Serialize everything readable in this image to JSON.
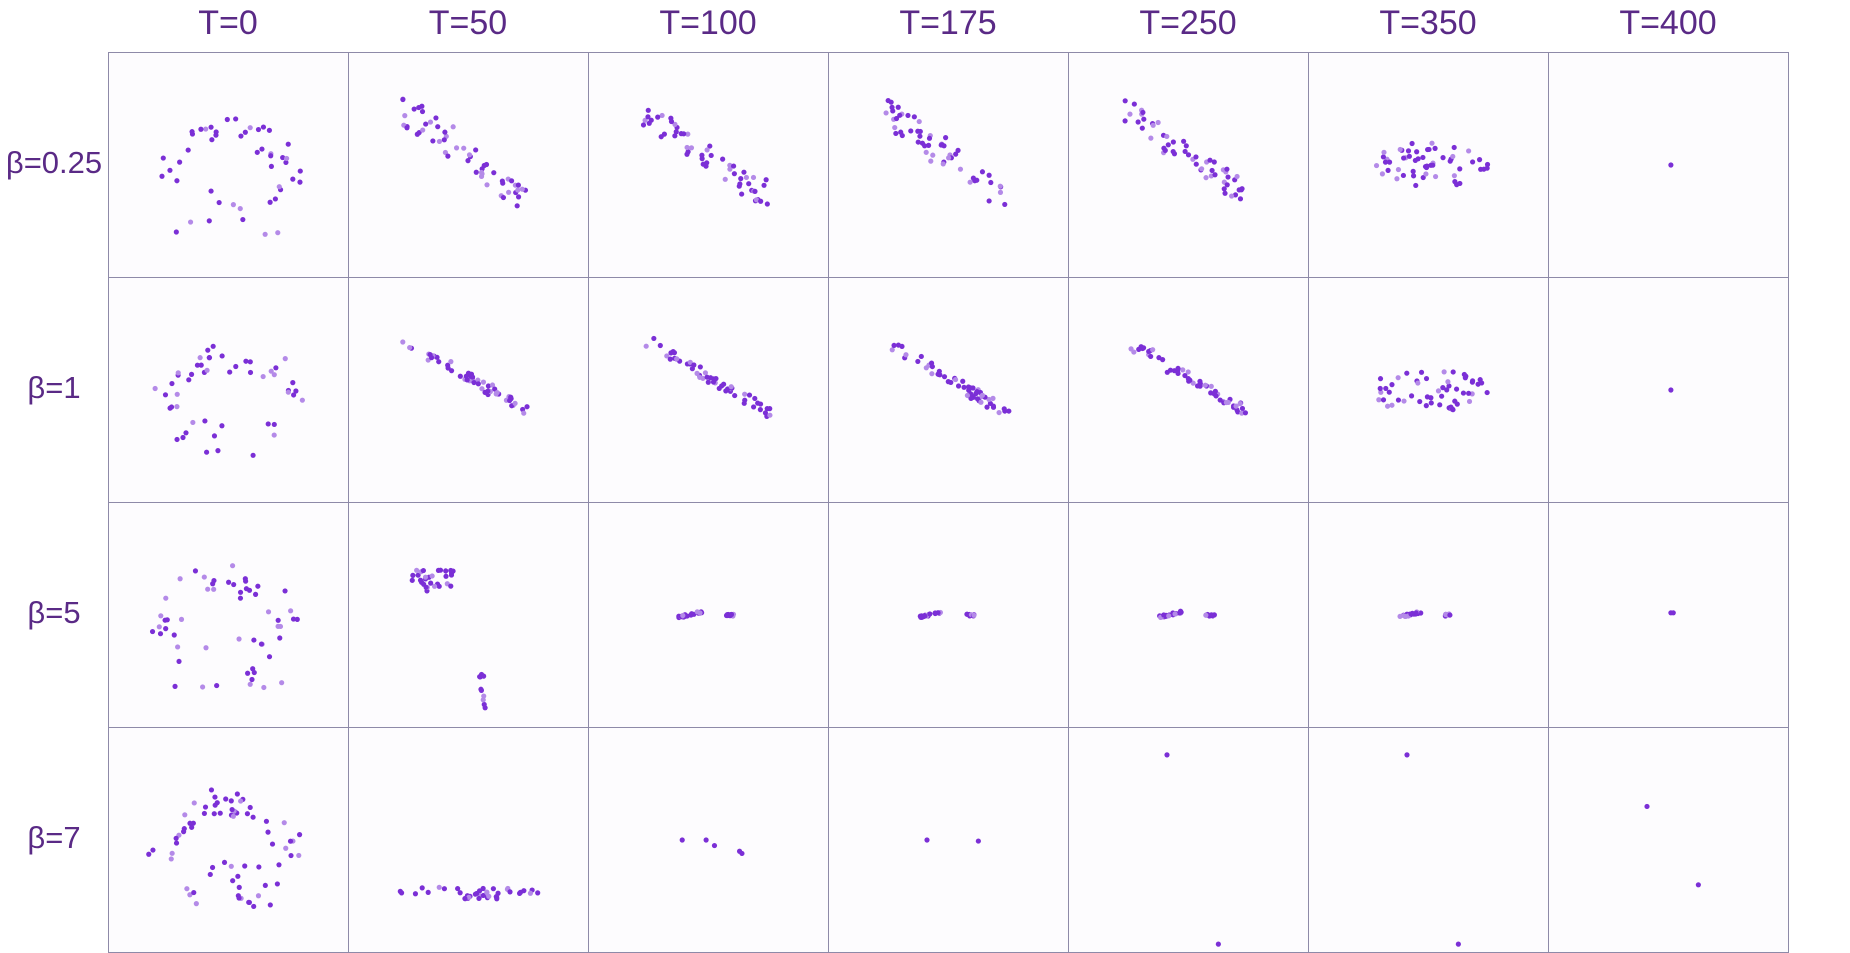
{
  "colors": {
    "label": "#5a2a86",
    "border": "#8e8aa8",
    "point_dark": "#7b2fd6",
    "point_light": "#b48ae8"
  },
  "columns": [
    "T=0",
    "T=50",
    "T=100",
    "T=175",
    "T=250",
    "T=350",
    "T=400"
  ],
  "rows": [
    "β=0.25",
    "β=1",
    "β=5",
    "β=7"
  ],
  "chart_data": {
    "type": "scatter",
    "xlim": [
      -1,
      1
    ],
    "ylim": [
      -1,
      1
    ],
    "grid": false,
    "axes_visible": false,
    "layout": "grid",
    "panels": {
      "β=0.25": {
        "T=0": {
          "kind": "arc",
          "n": 48,
          "seed": 1
        },
        "T=50": {
          "kind": "band",
          "n": 55,
          "seed": 2
        },
        "T=100": {
          "kind": "band",
          "n": 55,
          "seed": 3
        },
        "T=175": {
          "kind": "band",
          "n": 55,
          "seed": 4
        },
        "T=250": {
          "kind": "band",
          "n": 55,
          "seed": 5
        },
        "T=350": {
          "kind": "blob",
          "n": 55,
          "seed": 6
        },
        "T=400": {
          "kind": "points",
          "pts": [
            [
              0.02,
              0.0
            ]
          ]
        }
      },
      "β=1": {
        "T=0": {
          "kind": "arc",
          "n": 50,
          "seed": 7
        },
        "T=50": {
          "kind": "band2",
          "n": 55,
          "seed": 8
        },
        "T=100": {
          "kind": "band2",
          "n": 55,
          "seed": 9
        },
        "T=175": {
          "kind": "band2",
          "n": 55,
          "seed": 10
        },
        "T=250": {
          "kind": "band2",
          "n": 55,
          "seed": 11
        },
        "T=350": {
          "kind": "blob",
          "n": 55,
          "seed": 12
        },
        "T=400": {
          "kind": "points",
          "pts": [
            [
              0.02,
              0.0
            ]
          ]
        }
      },
      "β=5": {
        "T=0": {
          "kind": "arc",
          "n": 55,
          "seed": 13
        },
        "T=50": {
          "kind": "cluster2",
          "n": 40,
          "seed": 14
        },
        "T=100": {
          "kind": "line2",
          "n": 30,
          "seed": 15
        },
        "T=175": {
          "kind": "line2",
          "n": 30,
          "seed": 16
        },
        "T=250": {
          "kind": "line2",
          "n": 30,
          "seed": 17
        },
        "T=350": {
          "kind": "line2",
          "n": 30,
          "seed": 18
        },
        "T=400": {
          "kind": "points",
          "pts": [
            [
              0.02,
              0.02
            ],
            [
              0.04,
              0.02
            ]
          ]
        }
      },
      "β=7": {
        "T=0": {
          "kind": "arc",
          "n": 70,
          "seed": 19
        },
        "T=50": {
          "kind": "bottomrow",
          "n": 40,
          "seed": 20
        },
        "T=100": {
          "kind": "points",
          "pts": [
            [
              -0.22,
              0.0
            ],
            [
              -0.02,
              0.0
            ],
            [
              0.05,
              -0.05
            ],
            [
              0.28,
              -0.12
            ],
            [
              0.26,
              -0.1
            ]
          ]
        },
        "T=175": {
          "kind": "points",
          "pts": [
            [
              -0.18,
              0.0
            ],
            [
              0.25,
              -0.01
            ]
          ]
        },
        "T=250": {
          "kind": "points",
          "pts": [
            [
              -0.18,
              0.76
            ],
            [
              0.25,
              -0.93
            ]
          ]
        },
        "T=350": {
          "kind": "points",
          "pts": [
            [
              -0.18,
              0.76
            ],
            [
              0.25,
              -0.93
            ]
          ]
        },
        "T=400": {
          "kind": "points",
          "pts": [
            [
              -0.18,
              0.3
            ],
            [
              0.25,
              -0.4
            ]
          ]
        }
      }
    }
  }
}
